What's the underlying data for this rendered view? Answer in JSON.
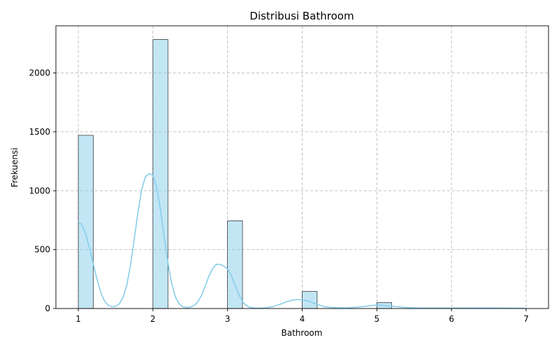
{
  "chart_data": {
    "type": "bar",
    "title": "Distribusi Bathroom",
    "xlabel": "Bathroom",
    "ylabel": "Frekuensi",
    "xlim": [
      0.7,
      7.3
    ],
    "ylim": [
      0,
      2400
    ],
    "xticks": [
      "1",
      "2",
      "3",
      "4",
      "5",
      "6",
      "7"
    ],
    "yticks": [
      "0",
      "500",
      "1000",
      "1500",
      "2000"
    ],
    "grid": true,
    "bin_width": 0.2,
    "bars": [
      {
        "x": 1.0,
        "value": 1470
      },
      {
        "x": 2.0,
        "value": 2285
      },
      {
        "x": 3.0,
        "value": 745
      },
      {
        "x": 4.0,
        "value": 145
      },
      {
        "x": 5.0,
        "value": 50
      }
    ],
    "kde": {
      "x": [
        1.0,
        1.05,
        1.1,
        1.15,
        1.2,
        1.25,
        1.3,
        1.35,
        1.4,
        1.45,
        1.5,
        1.55,
        1.6,
        1.65,
        1.7,
        1.75,
        1.8,
        1.85,
        1.9,
        1.95,
        2.0,
        2.05,
        2.1,
        2.15,
        2.2,
        2.25,
        2.3,
        2.35,
        2.4,
        2.45,
        2.5,
        2.55,
        2.6,
        2.65,
        2.7,
        2.75,
        2.8,
        2.85,
        2.9,
        2.95,
        3.0,
        3.05,
        3.1,
        3.15,
        3.2,
        3.25,
        3.3,
        3.35,
        3.4,
        3.5,
        3.6,
        3.7,
        3.8,
        3.9,
        4.0,
        4.1,
        4.2,
        4.3,
        4.4,
        4.6,
        4.8,
        5.0,
        5.2,
        5.4,
        5.6,
        6.0,
        6.5,
        7.0
      ],
      "y": [
        735,
        710,
        630,
        515,
        380,
        250,
        140,
        65,
        28,
        15,
        18,
        40,
        95,
        200,
        370,
        590,
        820,
        1010,
        1120,
        1145,
        1130,
        1030,
        840,
        610,
        390,
        215,
        100,
        40,
        15,
        8,
        12,
        25,
        55,
        110,
        190,
        275,
        340,
        375,
        375,
        360,
        335,
        280,
        200,
        120,
        60,
        25,
        10,
        5,
        3,
        5,
        15,
        35,
        60,
        75,
        75,
        60,
        35,
        15,
        8,
        5,
        15,
        30,
        20,
        8,
        4,
        4,
        5,
        2
      ],
      "color": "#87CEEB"
    },
    "bar_color": "#87CEEB",
    "bar_opacity": 0.5,
    "bar_edge_color": "#000000"
  }
}
